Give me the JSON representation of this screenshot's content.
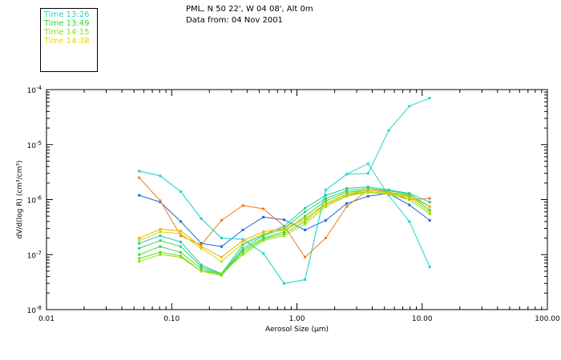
{
  "header": {
    "location": "PML, N 50 22', W 04 08', Alt 0m",
    "date": "Data from: 04 Nov 2001"
  },
  "legend": [
    {
      "label": "Time 13:26",
      "color": "#24d8cc"
    },
    {
      "label": "Time 13:49",
      "color": "#2ed82e"
    },
    {
      "label": "Time 14:15",
      "color": "#8ee000"
    },
    {
      "label": "Time 14:38",
      "color": "#e8d800"
    }
  ],
  "chart_data": {
    "type": "line",
    "xlabel": "Aerosol Size (μm)",
    "ylabel": "dV/d(log R) (cm³/cm³)",
    "xscale": "log",
    "yscale": "log",
    "xlim": [
      0.01,
      100
    ],
    "ylim": [
      1e-08,
      0.0001
    ],
    "x_ticks": [
      {
        "value": 0.01,
        "label": "0.01"
      },
      {
        "value": 0.1,
        "label": "0.10"
      },
      {
        "value": 1,
        "label": "1.00"
      },
      {
        "value": 10,
        "label": "10.00"
      },
      {
        "value": 100,
        "label": "100.00"
      }
    ],
    "y_ticks": [
      {
        "value": 1e-08,
        "label": "10",
        "exp": "-8"
      },
      {
        "value": 1e-07,
        "label": "10",
        "exp": "-7"
      },
      {
        "value": 1e-06,
        "label": "10",
        "exp": "-6"
      },
      {
        "value": 1e-05,
        "label": "10",
        "exp": "-5"
      },
      {
        "value": 0.0001,
        "label": "10",
        "exp": "-4"
      }
    ],
    "x": [
      0.055,
      0.081,
      0.118,
      0.172,
      0.25,
      0.37,
      0.54,
      0.79,
      1.16,
      1.7,
      2.5,
      3.7,
      5.4,
      7.9,
      11.5
    ],
    "series": [
      {
        "color": "#1a6ae0",
        "values": [
          1.2e-06,
          9e-07,
          4e-07,
          1.6e-07,
          1.4e-07,
          2.8e-07,
          4.8e-07,
          4.3e-07,
          2.8e-07,
          4.2e-07,
          8.5e-07,
          1.15e-06,
          1.3e-06,
          8e-07,
          4.2e-07
        ]
      },
      {
        "color": "#f07818",
        "values": [
          2.5e-06,
          9.5e-07,
          2.2e-07,
          1.5e-07,
          4.2e-07,
          7.8e-07,
          6.8e-07,
          3.3e-07,
          9e-08,
          2e-07,
          7.5e-07,
          1.5e-06,
          1.4e-06,
          1e-06,
          1.05e-06
        ]
      },
      {
        "color": "#24d8cc",
        "values": [
          3.3e-06,
          2.7e-06,
          1.4e-06,
          4.5e-07,
          2e-07,
          1.9e-07,
          1.05e-07,
          3e-08,
          3.5e-08,
          1.5e-06,
          2.9e-06,
          3e-06,
          1.8e-05,
          5e-05,
          7e-05
        ]
      },
      {
        "color": "#24d8cc",
        "values": [
          3.3e-06,
          2.7e-06,
          1.4e-06,
          4.5e-07,
          2e-07,
          1.9e-07,
          1.05e-07,
          3e-08,
          3.5e-08,
          1.5e-06,
          2.9e-06,
          4.5e-06,
          1.2e-06,
          4e-07,
          6e-08
        ]
      },
      {
        "color": "#20c8a8",
        "values": [
          1.6e-07,
          2.2e-07,
          1.7e-07,
          6.5e-08,
          4.5e-08,
          1.5e-07,
          2.3e-07,
          3.3e-07,
          7e-07,
          1.2e-06,
          1.6e-06,
          1.7e-06,
          1.5e-06,
          1.3e-06,
          9e-07
        ]
      },
      {
        "color": "#30d860",
        "values": [
          1.3e-07,
          1.8e-07,
          1.4e-07,
          6e-08,
          4.4e-08,
          1.3e-07,
          2.2e-07,
          3e-07,
          6e-07,
          1.05e-06,
          1.45e-06,
          1.6e-06,
          1.45e-06,
          1.25e-06,
          7.5e-07
        ]
      },
      {
        "color": "#3ad83a",
        "values": [
          1e-07,
          1.4e-07,
          1.1e-07,
          5.5e-08,
          4.3e-08,
          1.2e-07,
          2e-07,
          2.6e-07,
          5e-07,
          9.5e-07,
          1.35e-06,
          1.5e-06,
          1.35e-06,
          1.2e-06,
          6.5e-07
        ]
      },
      {
        "color": "#60dc10",
        "values": [
          8.5e-08,
          1.1e-07,
          9.5e-08,
          5e-08,
          4.2e-08,
          1.1e-07,
          1.9e-07,
          2.4e-07,
          4e-07,
          8.5e-07,
          1.25e-06,
          1.4e-06,
          1.3e-06,
          1.1e-06,
          6e-07
        ]
      },
      {
        "color": "#90e000",
        "values": [
          7.5e-08,
          1e-07,
          9e-08,
          5e-08,
          4.5e-08,
          1e-07,
          1.8e-07,
          2.2e-07,
          3.6e-07,
          7.5e-07,
          1.15e-06,
          1.35e-06,
          1.25e-06,
          1e-06,
          5.5e-07
        ]
      },
      {
        "color": "#c8dc00",
        "values": [
          1.8e-07,
          2.6e-07,
          2.4e-07,
          1.3e-07,
          7.5e-08,
          1.6e-07,
          2.4e-07,
          2.8e-07,
          4.2e-07,
          8e-07,
          1.2e-06,
          1.4e-06,
          1.3e-06,
          1.1e-06,
          6e-07
        ]
      },
      {
        "color": "#f0b000",
        "values": [
          2e-07,
          2.9e-07,
          2.7e-07,
          1.4e-07,
          9e-08,
          1.8e-07,
          2.6e-07,
          3e-07,
          4.5e-07,
          8.5e-07,
          1.25e-06,
          1.5e-06,
          1.35e-06,
          1.15e-06,
          7.5e-07
        ]
      }
    ]
  }
}
